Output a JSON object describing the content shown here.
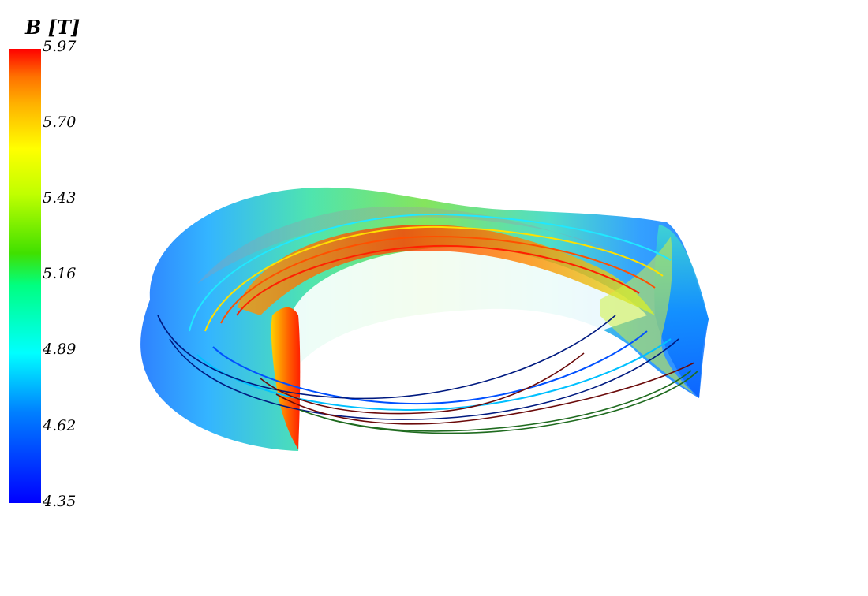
{
  "colorbar": {
    "title": "B [T]",
    "min": 4.35,
    "max": 5.97,
    "ticks": [
      "5.97",
      "5.70",
      "5.43",
      "5.16",
      "4.89",
      "4.62",
      "4.35"
    ],
    "colors": [
      "#0000ff",
      "#0080ff",
      "#00ffff",
      "#00ff80",
      "#40e000",
      "#c0ff00",
      "#ffff00",
      "#ffb000",
      "#ff7000",
      "#ff0000"
    ]
  },
  "field_lines": {
    "colors": [
      "#001a80",
      "#6b0a0a",
      "#1f6b1f"
    ]
  }
}
